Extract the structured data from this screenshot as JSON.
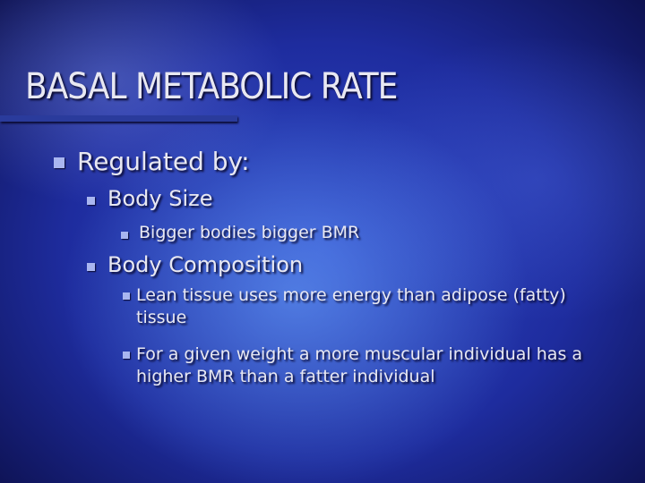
{
  "slide": {
    "title": "BASAL METABOLIC RATE",
    "bullets": [
      {
        "text": "Regulated by:",
        "children": [
          {
            "text": "Body Size",
            "children": [
              {
                "text": "Bigger bodies bigger BMR"
              }
            ]
          },
          {
            "text": "Body Composition",
            "children": [
              {
                "text": "Lean tissue uses more energy than adipose (fatty) tissue"
              },
              {
                "text": "For a given weight a more muscular individual has a higher BMR than a fatter individual"
              }
            ]
          }
        ]
      }
    ]
  }
}
